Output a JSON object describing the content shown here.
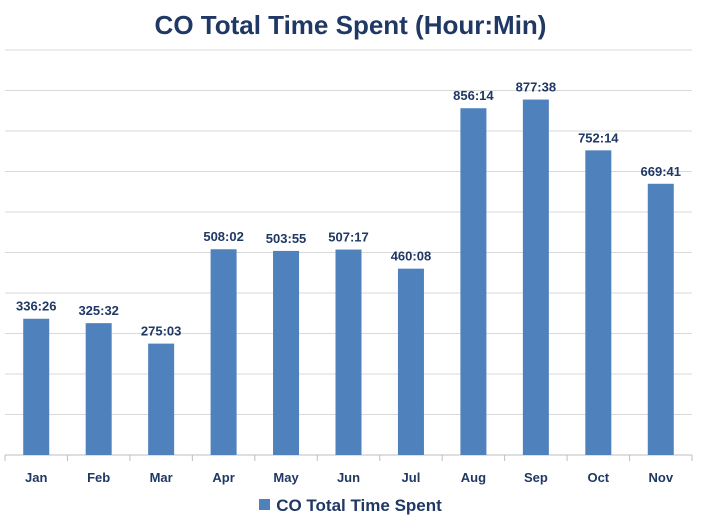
{
  "chart_data": {
    "type": "bar",
    "title": "CO Total Time Spent (Hour:Min)",
    "categories": [
      "Jan",
      "Feb",
      "Mar",
      "Apr",
      "May",
      "Jun",
      "Jul",
      "Aug",
      "Sep",
      "Oct",
      "Nov"
    ],
    "series": [
      {
        "name": "CO Total Time Spent",
        "values": [
          336.43,
          325.53,
          275.05,
          508.03,
          503.92,
          507.28,
          460.13,
          856.23,
          877.63,
          752.23,
          669.68
        ],
        "labels": [
          "336:26",
          "325:32",
          "275:03",
          "508:02",
          "503:55",
          "507:17",
          "460:08",
          "856:14",
          "877:38",
          "752:14",
          "669:41"
        ]
      }
    ],
    "ylim": [
      0,
      1000
    ],
    "grid": true,
    "legend": "bottom",
    "colors": {
      "bar": "#4F81BD",
      "text": "#1F3864",
      "grid": "#D9D9D9"
    }
  }
}
